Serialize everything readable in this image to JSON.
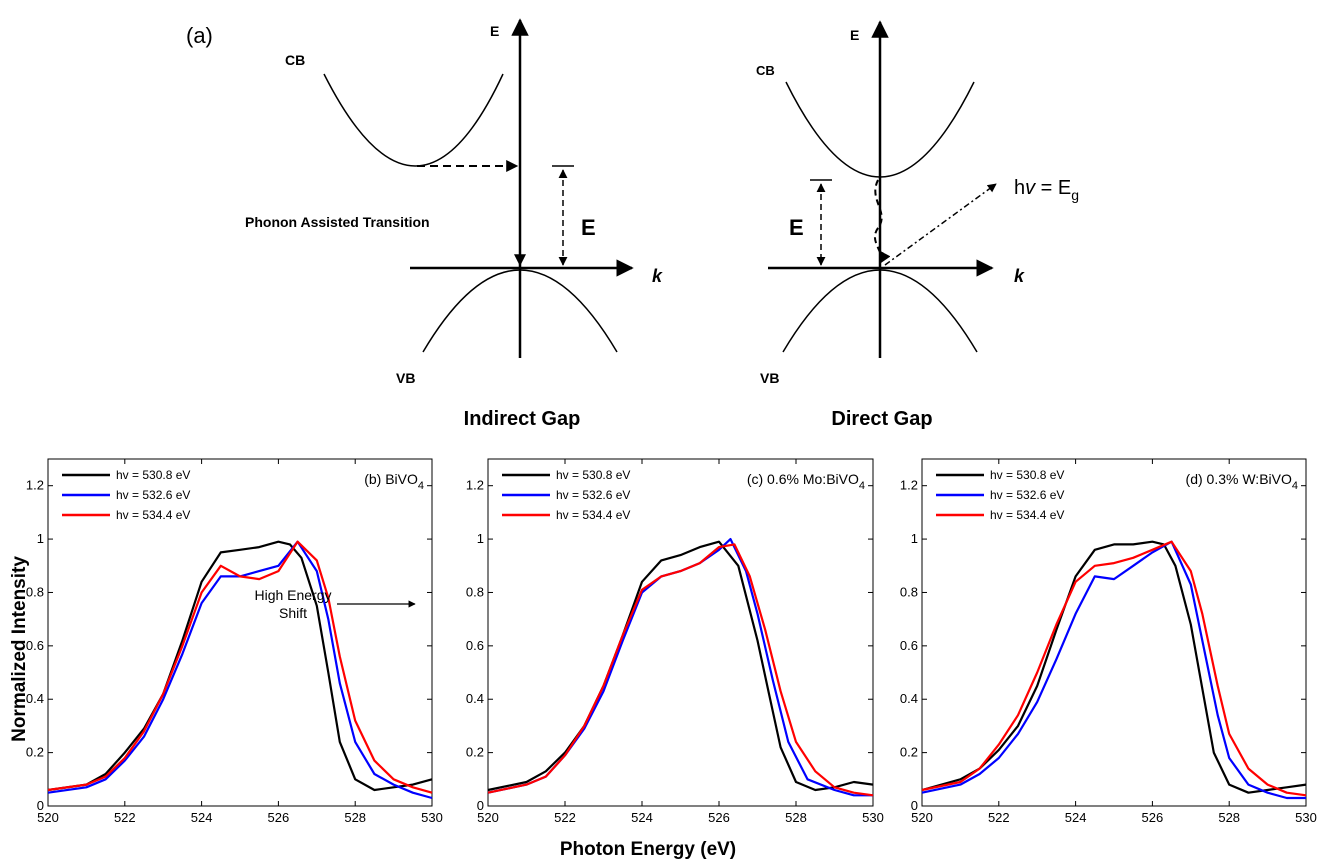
{
  "diagram": {
    "panel_label": "(a)",
    "indirect": {
      "cb_label": "CB",
      "vb_label": "VB",
      "e_axis": "E",
      "k_axis": "k",
      "gap_label": "E",
      "transition_label": "Phonon Assisted Transition",
      "caption": "Indirect Gap"
    },
    "direct": {
      "cb_label": "CB",
      "vb_label": "VB",
      "e_axis": "E",
      "k_axis": "k",
      "gap_label": "E",
      "photon_prefix": "h",
      "photon_nu": "v",
      "photon_mid": " = E",
      "photon_sub": "g",
      "caption": "Direct Gap"
    }
  },
  "shared_ylabel": "Normalized Intensity",
  "shared_xlabel": "Photon Energy (eV)",
  "annotation": {
    "line1": "High Energy",
    "line2": "Shift"
  },
  "colors": {
    "black": "#000000",
    "blue": "#0000ff",
    "red": "#ff0000"
  },
  "chart_data": [
    {
      "type": "line",
      "title_main": "(b) BiVO",
      "title_sub": "4",
      "xlim": [
        520,
        530
      ],
      "ylim": [
        0,
        1.3
      ],
      "xticks": [
        520,
        522,
        524,
        526,
        528,
        530
      ],
      "yticks": [
        0,
        0.2,
        0.4,
        0.6,
        0.8,
        1,
        1.2
      ],
      "ytick_labels": [
        "0",
        "0.2",
        "0.4",
        "0.6",
        "0.8",
        "1",
        "1.2"
      ],
      "series": [
        {
          "name": "hv = 530.8 eV",
          "color": "#000000",
          "x": [
            520,
            521,
            521.5,
            522,
            522.5,
            523,
            523.5,
            524,
            524.5,
            525,
            525.5,
            526,
            526.3,
            526.6,
            527,
            527.3,
            527.6,
            528,
            528.5,
            529,
            529.5,
            530
          ],
          "y": [
            0.06,
            0.08,
            0.12,
            0.2,
            0.29,
            0.42,
            0.62,
            0.84,
            0.95,
            0.96,
            0.97,
            0.99,
            0.98,
            0.93,
            0.75,
            0.5,
            0.24,
            0.1,
            0.06,
            0.07,
            0.08,
            0.1
          ]
        },
        {
          "name": "hv = 532.6 eV",
          "color": "#0000ff",
          "x": [
            520,
            521,
            521.5,
            522,
            522.5,
            523,
            523.5,
            524,
            524.5,
            525,
            525.5,
            526,
            526.5,
            527,
            527.3,
            527.6,
            528,
            528.5,
            529,
            529.5,
            530
          ],
          "y": [
            0.05,
            0.07,
            0.1,
            0.17,
            0.26,
            0.4,
            0.57,
            0.76,
            0.86,
            0.86,
            0.88,
            0.9,
            0.99,
            0.88,
            0.7,
            0.46,
            0.24,
            0.12,
            0.08,
            0.05,
            0.03
          ]
        },
        {
          "name": "hv = 534.4 eV",
          "color": "#ff0000",
          "x": [
            520,
            521,
            521.5,
            522,
            522.5,
            523,
            523.5,
            524,
            524.5,
            525,
            525.5,
            526,
            526.5,
            527,
            527.3,
            527.6,
            528,
            528.5,
            529,
            529.5,
            530
          ],
          "y": [
            0.06,
            0.08,
            0.11,
            0.18,
            0.28,
            0.42,
            0.6,
            0.8,
            0.9,
            0.86,
            0.85,
            0.88,
            0.99,
            0.92,
            0.78,
            0.56,
            0.32,
            0.17,
            0.1,
            0.07,
            0.05
          ]
        }
      ]
    },
    {
      "type": "line",
      "title_main": "(c) 0.6% Mo:BiVO",
      "title_sub": "4",
      "xlim": [
        520,
        530
      ],
      "ylim": [
        0,
        1.3
      ],
      "xticks": [
        520,
        522,
        524,
        526,
        528,
        530
      ],
      "yticks": [
        0,
        0.2,
        0.4,
        0.6,
        0.8,
        1,
        1.2
      ],
      "ytick_labels": [
        "0",
        "0.2",
        "0.4",
        "0.6",
        "0.8",
        "1",
        "1.2"
      ],
      "series": [
        {
          "name": "hv = 530.8 eV",
          "color": "#000000",
          "x": [
            520,
            521,
            521.5,
            522,
            522.5,
            523,
            523.5,
            524,
            524.5,
            525,
            525.5,
            526,
            526.5,
            527,
            527.3,
            527.6,
            528,
            528.5,
            529,
            529.5,
            530
          ],
          "y": [
            0.06,
            0.09,
            0.13,
            0.2,
            0.3,
            0.45,
            0.64,
            0.84,
            0.92,
            0.94,
            0.97,
            0.99,
            0.9,
            0.62,
            0.42,
            0.22,
            0.09,
            0.06,
            0.07,
            0.09,
            0.08
          ]
        },
        {
          "name": "hv = 532.6 eV",
          "color": "#0000ff",
          "x": [
            520,
            521,
            521.5,
            522,
            522.5,
            523,
            523.5,
            524,
            524.5,
            525,
            525.5,
            526,
            526.3,
            526.7,
            527,
            527.4,
            527.8,
            528.3,
            529,
            529.5,
            530
          ],
          "y": [
            0.05,
            0.08,
            0.11,
            0.19,
            0.29,
            0.43,
            0.62,
            0.8,
            0.86,
            0.88,
            0.91,
            0.96,
            1.0,
            0.88,
            0.72,
            0.47,
            0.24,
            0.1,
            0.06,
            0.04,
            0.04
          ]
        },
        {
          "name": "hv = 534.4 eV",
          "color": "#ff0000",
          "x": [
            520,
            521,
            521.5,
            522,
            522.5,
            523,
            523.5,
            524,
            524.5,
            525,
            525.5,
            526,
            526.4,
            526.8,
            527.2,
            527.6,
            528,
            528.5,
            529,
            529.5,
            530
          ],
          "y": [
            0.05,
            0.08,
            0.11,
            0.19,
            0.3,
            0.45,
            0.64,
            0.81,
            0.86,
            0.88,
            0.91,
            0.97,
            0.98,
            0.86,
            0.66,
            0.43,
            0.24,
            0.13,
            0.07,
            0.05,
            0.04
          ]
        }
      ]
    },
    {
      "type": "line",
      "title_main": "(d) 0.3% W:BiVO",
      "title_sub": "4",
      "xlim": [
        520,
        530
      ],
      "ylim": [
        0,
        1.3
      ],
      "xticks": [
        520,
        522,
        524,
        526,
        528,
        530
      ],
      "yticks": [
        0,
        0.2,
        0.4,
        0.6,
        0.8,
        1,
        1.2
      ],
      "ytick_labels": [
        "0",
        "0.2",
        "0.4",
        "0.6",
        "0.8",
        "1",
        "1.2"
      ],
      "series": [
        {
          "name": "hv = 530.8 eV",
          "color": "#000000",
          "x": [
            520,
            521,
            521.5,
            522,
            522.5,
            523,
            523.5,
            524,
            524.5,
            525,
            525.5,
            526,
            526.3,
            526.6,
            527,
            527.3,
            527.6,
            528,
            528.5,
            529,
            529.5,
            530
          ],
          "y": [
            0.06,
            0.1,
            0.14,
            0.21,
            0.3,
            0.45,
            0.66,
            0.86,
            0.96,
            0.98,
            0.98,
            0.99,
            0.98,
            0.9,
            0.68,
            0.44,
            0.2,
            0.08,
            0.05,
            0.06,
            0.07,
            0.08
          ]
        },
        {
          "name": "hv = 532.6 eV",
          "color": "#0000ff",
          "x": [
            520,
            521,
            521.5,
            522,
            522.5,
            523,
            523.5,
            524,
            524.5,
            525,
            525.5,
            526,
            526.5,
            527,
            527.3,
            527.7,
            528,
            528.5,
            529,
            529.5,
            530
          ],
          "y": [
            0.05,
            0.08,
            0.12,
            0.18,
            0.27,
            0.39,
            0.55,
            0.72,
            0.86,
            0.85,
            0.9,
            0.95,
            0.99,
            0.83,
            0.62,
            0.34,
            0.18,
            0.08,
            0.05,
            0.03,
            0.03
          ]
        },
        {
          "name": "hv = 534.4 eV",
          "color": "#ff0000",
          "x": [
            520,
            521,
            521.5,
            522,
            522.5,
            523,
            523.5,
            524,
            524.5,
            525,
            525.5,
            526,
            526.5,
            527,
            527.3,
            527.7,
            528,
            528.5,
            529,
            529.5,
            530
          ],
          "y": [
            0.06,
            0.09,
            0.14,
            0.23,
            0.34,
            0.5,
            0.68,
            0.84,
            0.9,
            0.91,
            0.93,
            0.96,
            0.99,
            0.88,
            0.72,
            0.45,
            0.27,
            0.14,
            0.08,
            0.05,
            0.04
          ]
        }
      ]
    }
  ]
}
